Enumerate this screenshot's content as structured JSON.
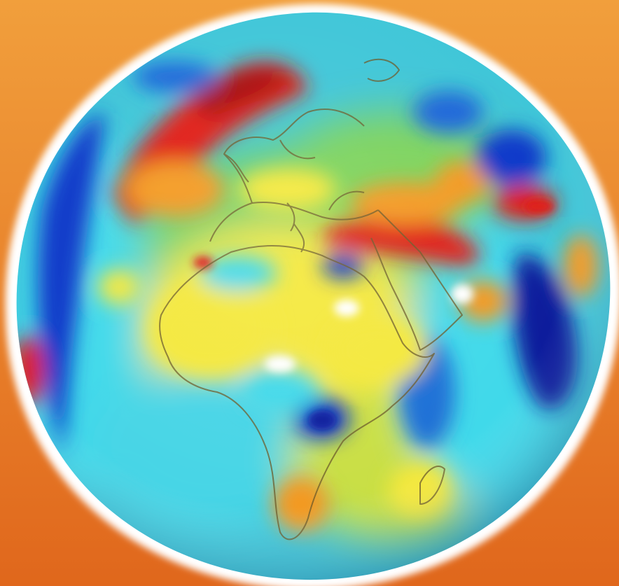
{
  "scene": {
    "subject": "geoid-globe-icon",
    "colors": {
      "background_top": "#f19f3c",
      "background_bottom": "#e0671c",
      "halo": "#ffffff",
      "ocean_base": "#3fc6d8",
      "cyan": "#3fd9ea",
      "blue": "#0b38c9",
      "deep_blue": "#081c9c",
      "green": "#6fd06a",
      "yellow": "#f4e83a",
      "orange": "#f39a24",
      "red": "#e01f16",
      "dark_red": "#a50f10",
      "coastline": "#6b5a28"
    }
  }
}
